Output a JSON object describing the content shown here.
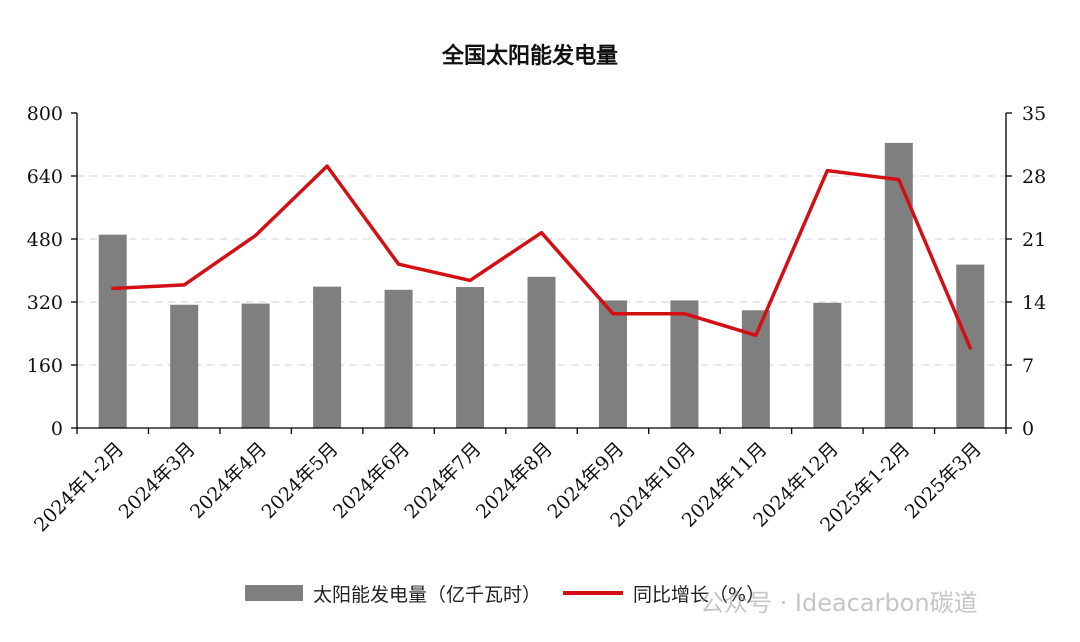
{
  "chart_data": {
    "type": "bar",
    "title": "全国太阳能发电量",
    "categories": [
      "2024年1-2月",
      "2024年3月",
      "2024年4月",
      "2024年5月",
      "2024年6月",
      "2024年7月",
      "2024年8月",
      "2024年9月",
      "2024年10月",
      "2024年11月",
      "2024年12月",
      "2025年1-2月",
      "2025年3月"
    ],
    "series": [
      {
        "name": "太阳能发电量（亿千瓦时）",
        "type": "bar",
        "axis": "left",
        "color": "#7f7f7f",
        "values": [
          491,
          313,
          316,
          359,
          351,
          358,
          384,
          324,
          324,
          299,
          318,
          724,
          415
        ]
      },
      {
        "name": "同比增长（%）",
        "type": "line",
        "axis": "right",
        "color": "#d40f14",
        "values": [
          15.5,
          15.9,
          21.4,
          29.1,
          18.2,
          16.4,
          21.7,
          12.7,
          12.7,
          10.3,
          28.6,
          27.6,
          8.9
        ]
      }
    ],
    "y_left": {
      "lim": [
        0,
        800
      ],
      "ticks": [
        "0",
        "160",
        "320",
        "480",
        "640",
        "800"
      ]
    },
    "y_right": {
      "lim": [
        0,
        35
      ],
      "ticks": [
        "0",
        "7",
        "14",
        "21",
        "28",
        "35"
      ]
    },
    "grid": "horizontal dashed",
    "legend_position": "bottom"
  },
  "watermark": "公众号 · Ideacarbon碳道"
}
